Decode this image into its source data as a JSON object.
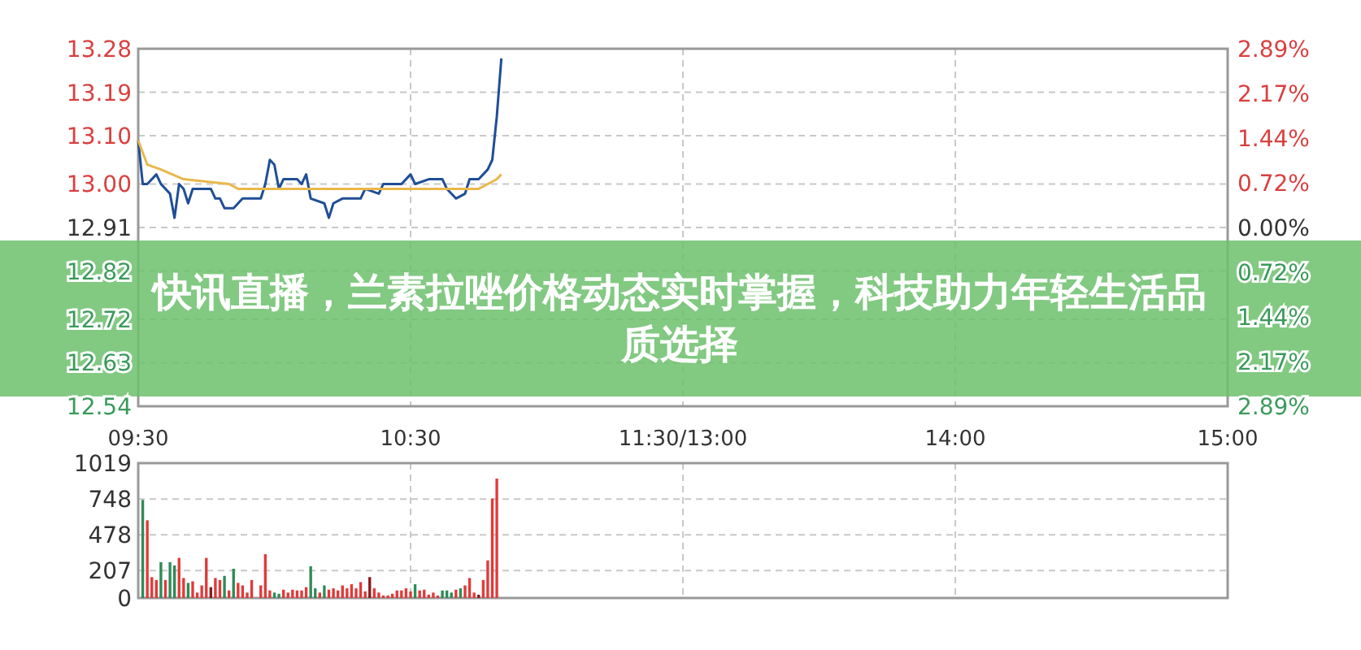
{
  "chart_data": [
    {
      "type": "line",
      "title": "快讯直播，兰素拉唑价格动态实时掌握，科技助力年轻生活品质选择",
      "categories": [
        "09:30",
        null,
        null,
        null,
        null,
        null,
        null,
        null,
        null,
        null,
        null,
        null,
        null,
        null,
        null,
        null,
        null,
        null,
        null,
        null,
        null,
        null,
        null,
        null,
        null,
        null,
        null,
        null,
        null,
        null,
        null,
        null,
        null,
        null,
        null,
        null,
        null,
        null,
        null,
        null,
        null,
        null,
        null,
        null,
        null,
        null,
        null,
        null,
        null,
        null,
        null,
        null,
        null,
        null,
        null,
        null,
        null,
        null,
        null,
        null,
        "10:30",
        null,
        null,
        null,
        null,
        null,
        null,
        null,
        null,
        null,
        null,
        null,
        null,
        null,
        null,
        null,
        null,
        null,
        null,
        null,
        null,
        null,
        null,
        null,
        null,
        null,
        null,
        null,
        null,
        null,
        null,
        null,
        null,
        null,
        null,
        null,
        null,
        null,
        null,
        null,
        null,
        null,
        null,
        null,
        null,
        null,
        null,
        null,
        null,
        null,
        null,
        null,
        null,
        null,
        null,
        null,
        null,
        null,
        null,
        null,
        "11:30/13:00",
        null,
        null,
        null,
        null,
        null,
        null,
        null,
        null,
        null,
        null,
        null,
        null,
        null,
        null,
        null,
        null,
        null,
        null,
        null,
        null,
        null,
        null,
        null,
        null,
        null,
        null,
        null,
        null,
        null,
        null,
        null,
        null,
        null,
        null,
        null,
        null,
        null,
        null,
        null,
        null,
        null,
        null,
        null,
        null,
        null,
        null,
        null,
        null,
        null,
        null,
        null,
        null,
        null,
        null,
        null,
        null,
        null,
        null,
        null,
        "14:00",
        null,
        null,
        null,
        null,
        null,
        null,
        null,
        null,
        null,
        null,
        null,
        null,
        null,
        null,
        null,
        null,
        null,
        null,
        null,
        null,
        null,
        null,
        null,
        null,
        null,
        null,
        null,
        null,
        null,
        null,
        null,
        null,
        null,
        null,
        null,
        null,
        null,
        null,
        null,
        null,
        null,
        null,
        null,
        null,
        null,
        null,
        null,
        null,
        null,
        null,
        null,
        null,
        null,
        null,
        null,
        null,
        null,
        null,
        null,
        "15:00"
      ],
      "series": [
        {
          "color": "#1f4e96",
          "values": [
            13.09,
            13.0,
            13.0,
            null,
            13.02,
            13.0,
            null,
            12.98,
            12.93,
            13.0,
            12.99,
            12.96,
            12.99,
            null,
            null,
            null,
            12.99,
            12.97,
            12.97,
            12.95,
            null,
            12.95,
            12.96,
            12.97,
            null,
            null,
            null,
            12.97,
            13.0,
            13.05,
            13.04,
            12.99,
            13.01,
            null,
            null,
            13.01,
            13.0,
            13.02,
            12.97,
            null,
            null,
            12.96,
            12.93,
            12.96,
            null,
            12.97,
            null,
            null,
            null,
            12.97,
            12.99,
            null,
            null,
            12.98,
            13.0,
            null,
            null,
            null,
            13.0,
            null,
            13.02,
            13.0,
            null,
            null,
            13.01,
            null,
            null,
            13.01,
            12.99,
            null,
            12.97,
            null,
            12.98,
            13.01,
            null,
            13.01,
            null,
            13.03,
            13.05,
            13.14,
            13.26,
            null,
            null,
            null,
            null,
            null,
            null,
            null,
            null,
            null,
            null,
            null,
            null,
            null,
            null,
            null,
            null,
            null,
            null,
            null,
            null,
            null,
            null,
            null,
            null,
            null,
            null,
            null,
            null,
            null,
            null,
            null,
            null,
            null,
            null,
            null,
            null,
            null,
            null,
            null,
            null,
            null,
            null,
            null,
            null,
            null,
            null,
            null,
            null,
            null,
            null,
            null,
            null,
            null,
            null,
            null,
            null,
            null,
            null,
            null,
            null,
            null,
            null,
            null,
            null,
            null,
            null,
            null,
            null,
            null,
            null,
            null,
            null,
            null,
            null,
            null,
            null,
            null,
            null,
            null,
            null,
            null,
            null,
            null,
            null,
            null,
            null,
            null,
            null,
            null,
            null,
            null,
            null,
            null,
            null,
            null,
            null,
            null,
            null,
            null,
            null,
            null,
            null,
            null,
            null,
            null,
            null,
            null,
            null,
            null,
            null,
            null,
            null,
            null,
            null,
            null,
            null,
            null,
            null,
            null,
            null,
            null,
            null,
            null,
            null,
            null,
            null,
            null,
            null,
            null,
            null,
            null,
            null,
            null,
            null,
            null,
            null,
            null,
            null,
            null,
            null,
            null,
            null,
            null,
            null,
            null,
            null,
            null,
            null,
            null,
            null,
            null,
            null,
            null,
            null,
            null,
            null,
            null,
            null,
            null,
            null
          ]
        },
        {
          "color": "#e8b84a",
          "values": [
            13.09,
            null,
            13.04,
            null,
            null,
            13.03,
            null,
            null,
            null,
            null,
            13.01,
            null,
            null,
            null,
            null,
            null,
            null,
            null,
            null,
            null,
            13.0,
            null,
            12.99,
            null,
            null,
            null,
            null,
            null,
            null,
            null,
            null,
            null,
            null,
            null,
            null,
            null,
            null,
            null,
            null,
            null,
            12.99,
            null,
            null,
            null,
            null,
            null,
            null,
            null,
            null,
            null,
            null,
            null,
            null,
            null,
            null,
            null,
            null,
            null,
            null,
            null,
            12.99,
            null,
            null,
            null,
            null,
            null,
            null,
            null,
            null,
            null,
            null,
            null,
            null,
            null,
            null,
            12.99,
            null,
            13.0,
            null,
            13.01,
            13.02,
            null,
            null,
            null,
            null,
            null,
            null,
            null,
            null,
            null,
            null,
            null,
            null,
            null,
            null,
            null,
            null,
            null,
            null,
            null,
            null,
            null,
            null,
            null,
            null,
            null,
            null,
            null,
            null,
            null,
            null,
            null,
            null,
            null,
            null,
            null,
            null,
            null,
            null,
            null,
            null,
            null,
            null,
            null,
            null,
            null,
            null,
            null,
            null,
            null,
            null,
            null,
            null,
            null,
            null,
            null,
            null,
            null,
            null,
            null,
            null,
            null,
            null,
            null,
            null,
            null,
            null,
            null,
            null,
            null,
            null,
            null,
            null,
            null,
            null,
            null,
            null,
            null,
            null,
            null,
            null,
            null,
            null,
            null,
            null,
            null,
            null,
            null,
            null,
            null,
            null,
            null,
            null,
            null,
            null,
            null,
            null,
            null,
            null,
            null,
            null,
            null,
            null,
            null,
            null,
            null,
            null,
            null,
            null,
            null,
            null,
            null,
            null,
            null,
            null,
            null,
            null,
            null,
            null,
            null,
            null,
            null,
            null,
            null,
            null,
            null,
            null,
            null,
            null,
            null,
            null,
            null,
            null,
            null,
            null,
            null,
            null,
            null,
            null,
            null,
            null,
            null,
            null,
            null,
            null,
            null,
            null,
            null,
            null,
            null,
            null,
            null,
            null,
            null,
            null,
            null,
            null,
            null,
            null,
            null,
            null
          ]
        }
      ],
      "ylim": [
        12.54,
        13.28
      ],
      "yticks": [
        12.54,
        12.63,
        12.72,
        12.82,
        12.91,
        {
          "value": 13.0,
          "label": "13.00"
        },
        {
          "value": 13.1,
          "label": "13.10"
        },
        13.19,
        13.28
      ],
      "y2lim": [
        -2.89,
        2.89
      ],
      "y2ticks": [
        {
          "value": -2.89,
          "label": "2.89%"
        },
        {
          "value": -2.17,
          "label": "2.17%"
        },
        {
          "value": -1.44,
          "label": "1.44%"
        },
        {
          "value": -0.72,
          "label": "0.72%"
        },
        {
          "value": 0,
          "label": "0.00%"
        },
        {
          "value": 0.72,
          "label": "0.72%"
        },
        {
          "value": 1.44,
          "label": "1.44%"
        },
        {
          "value": 2.17,
          "label": "2.17%"
        },
        {
          "value": 2.89,
          "label": "2.89%"
        }
      ],
      "grid": true
    },
    {
      "type": "bar",
      "categories": [
        null,
        null,
        null,
        null,
        null,
        null,
        null,
        null,
        null,
        null,
        null,
        null,
        null,
        null,
        null,
        null,
        null,
        null,
        null,
        null,
        null,
        null,
        null,
        null,
        null,
        null,
        null,
        null,
        null,
        null,
        null,
        null,
        null,
        null,
        null,
        null,
        null,
        null,
        null,
        null,
        null,
        null,
        null,
        null,
        null,
        null,
        null,
        null,
        null,
        null,
        null,
        null,
        null,
        null,
        null,
        null,
        null,
        null,
        null,
        null,
        null,
        null,
        null,
        null,
        null,
        null,
        null,
        null,
        null,
        null,
        null,
        null,
        null,
        null,
        null,
        null,
        null,
        null,
        null,
        null,
        null,
        null,
        null,
        null,
        null,
        null,
        null,
        null,
        null,
        null,
        null,
        null,
        null,
        null,
        null,
        null,
        null,
        null,
        null,
        null,
        null,
        null,
        null,
        null,
        null,
        null,
        null,
        null,
        null,
        null,
        null,
        null,
        null,
        null,
        null,
        null,
        null,
        null,
        null,
        null,
        null,
        null,
        null,
        null,
        null,
        null,
        null,
        null,
        null,
        null,
        null,
        null,
        null,
        null,
        null,
        null,
        null,
        null,
        null,
        null,
        null,
        null,
        null,
        null,
        null,
        null,
        null,
        null,
        null,
        null,
        null,
        null,
        null,
        null,
        null,
        null,
        null,
        null,
        null,
        null,
        null,
        null,
        null,
        null,
        null,
        null,
        null,
        null,
        null,
        null,
        null,
        null,
        null,
        null,
        null,
        null,
        null,
        null,
        null,
        null,
        null,
        null,
        null,
        null,
        null,
        null,
        null,
        null,
        null,
        null,
        null,
        null,
        null,
        null,
        null,
        null,
        null,
        null,
        null,
        null,
        null,
        null,
        null,
        null,
        null,
        null,
        null,
        null,
        null,
        null,
        null,
        null,
        null,
        null,
        null,
        null,
        null,
        null,
        null,
        null,
        null,
        null,
        null,
        null,
        null,
        null,
        null,
        null,
        null,
        null,
        null,
        null,
        null,
        null,
        null,
        null,
        null,
        null,
        null,
        null,
        null
      ],
      "values": [
        null,
        741,
        587,
        158,
        136,
        271,
        136,
        271,
        246,
        303,
        151,
        114,
        126,
        41,
        95,
        303,
        82,
        151,
        136,
        167,
        57,
        221,
        114,
        95,
        41,
        136,
        null,
        95,
        331,
        57,
        41,
        32,
        63,
        41,
        63,
        57,
        57,
        82,
        240,
        73,
        41,
        95,
        63,
        73,
        57,
        95,
        73,
        104,
        73,
        120,
        50,
        158,
        73,
        41,
        19,
        19,
        32,
        57,
        57,
        73,
        50,
        104,
        57,
        63,
        25,
        41,
        19,
        57,
        57,
        41,
        63,
        73,
        95,
        151,
        41,
        25,
        136,
        284,
        751,
        902,
        null,
        null,
        null,
        null,
        null,
        null,
        null,
        null,
        null,
        null,
        null,
        null,
        null,
        null,
        null,
        null,
        null,
        null,
        null,
        null,
        null,
        null,
        null,
        null,
        null,
        null,
        null,
        null,
        null,
        null,
        null,
        null,
        null,
        null,
        null,
        null,
        null,
        null,
        null,
        null,
        null,
        null,
        null,
        null,
        null,
        null,
        null,
        null,
        null,
        null,
        null,
        null,
        null,
        null,
        null,
        null,
        null,
        null,
        null,
        null,
        null,
        null,
        null,
        null,
        null,
        null,
        null,
        null,
        null,
        null,
        null,
        null,
        null,
        null,
        null,
        null,
        null,
        null,
        null,
        null,
        null,
        null,
        null,
        null,
        null,
        null,
        null,
        null,
        null,
        null,
        null,
        null,
        null,
        null,
        null,
        null,
        null,
        null,
        null,
        null,
        null,
        null,
        null,
        null,
        null,
        null,
        null,
        null,
        null,
        null,
        null,
        null,
        null,
        null,
        null,
        null,
        null,
        null,
        null,
        null,
        null,
        null,
        null,
        null,
        null,
        null,
        null,
        null,
        null,
        null,
        null,
        null,
        null,
        null,
        null,
        null,
        null,
        null,
        null,
        null,
        null,
        null,
        null,
        null,
        null,
        null,
        null,
        null,
        null,
        null,
        null,
        null,
        null,
        null,
        null,
        null,
        null,
        null,
        null,
        null,
        null
      ],
      "colors": [
        null,
        "#2e8b57",
        "#e03a3a",
        "#e03a3a",
        "#e03a3a",
        "#2e8b57",
        "#e03a3a",
        "#2e8b57",
        "#2e8b57",
        "#e03a3a",
        "#e03a3a",
        "#2e8b57",
        "#e03a3a",
        "#e03a3a",
        "#e03a3a",
        "#e03a3a",
        "#8b1a1a",
        "#e03a3a",
        "#e03a3a",
        "#2e8b57",
        "#e03a3a",
        "#2e8b57",
        "#e03a3a",
        "#e03a3a",
        "#e03a3a",
        "#e03a3a",
        null,
        "#e03a3a",
        "#e03a3a",
        "#e03a3a",
        "#2e8b57",
        "#2e8b57",
        "#e03a3a",
        "#e03a3a",
        "#e03a3a",
        "#e03a3a",
        "#e03a3a",
        "#e03a3a",
        "#2e8b57",
        "#2e8b57",
        "#e03a3a",
        "#2e8b57",
        "#e03a3a",
        "#e03a3a",
        "#e03a3a",
        "#e03a3a",
        "#e03a3a",
        "#e03a3a",
        "#e03a3a",
        "#e03a3a",
        "#e03a3a",
        "#8b1a1a",
        "#e03a3a",
        "#e03a3a",
        "#e03a3a",
        "#e03a3a",
        "#e03a3a",
        "#e03a3a",
        "#e03a3a",
        "#e03a3a",
        "#e03a3a",
        "#2e8b57",
        "#e03a3a",
        "#e03a3a",
        "#e03a3a",
        "#e03a3a",
        "#e03a3a",
        "#2e8b57",
        "#2e8b57",
        "#2e8b57",
        "#e03a3a",
        "#2e8b57",
        "#e03a3a",
        "#e03a3a",
        "#e03a3a",
        "#8b1a1a",
        "#e03a3a",
        "#e03a3a",
        "#e03a3a",
        "#e03a3a",
        null,
        null,
        null,
        null,
        null,
        null,
        null,
        null,
        null,
        null,
        null,
        null,
        null,
        null,
        null,
        null,
        null,
        null,
        null,
        null,
        null,
        null,
        null,
        null,
        null,
        null,
        null,
        null,
        null,
        null,
        null,
        null,
        null,
        null,
        null,
        null,
        null,
        null,
        null,
        null,
        null,
        null,
        null,
        null,
        null,
        null,
        null,
        null,
        null,
        null,
        null,
        null,
        null,
        null,
        null,
        null,
        null,
        null,
        null,
        null,
        null,
        null,
        null,
        null,
        null,
        null,
        null,
        null,
        null,
        null,
        null,
        null,
        null,
        null,
        null,
        null,
        null,
        null,
        null,
        null,
        null,
        null,
        null,
        null,
        null,
        null,
        null,
        null,
        null,
        null,
        null,
        null,
        null,
        null,
        null,
        null,
        null,
        null,
        null,
        null,
        null,
        null,
        null,
        null,
        null,
        null,
        null,
        null,
        null,
        null,
        null,
        null,
        null,
        null,
        null,
        null,
        null,
        null,
        null,
        null,
        null,
        null,
        null,
        null,
        null,
        null,
        null,
        null,
        null,
        null,
        null,
        null,
        null,
        null,
        null,
        null,
        null,
        null,
        null,
        null,
        null,
        null,
        null,
        null,
        null,
        null,
        null,
        null,
        null,
        null,
        null,
        null,
        null,
        null,
        null,
        null,
        null,
        null,
        null,
        null,
        null
      ],
      "ylim": [
        0,
        1019
      ],
      "yticks": [
        0,
        207,
        478,
        748,
        1019
      ],
      "tick_labels": "y",
      "grid": true
    }
  ]
}
